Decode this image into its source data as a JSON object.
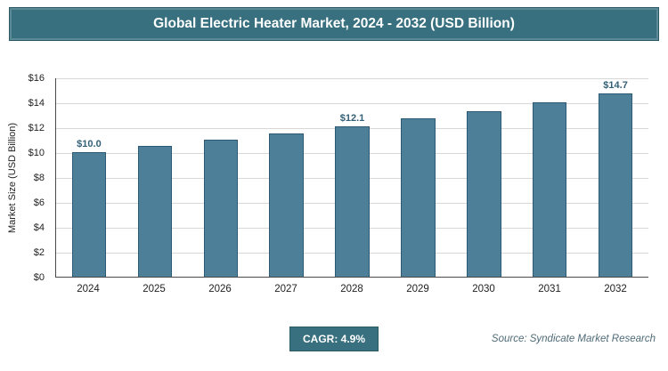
{
  "header": {
    "title": "Global Electric Heater Market, 2024 - 2032 (USD Billion)"
  },
  "chart_data": {
    "type": "bar",
    "title": "Global Electric Heater Market, 2024 - 2032 (USD Billion)",
    "categories": [
      "2024",
      "2025",
      "2026",
      "2027",
      "2028",
      "2029",
      "2030",
      "2031",
      "2032"
    ],
    "values": [
      10.0,
      10.5,
      11.0,
      11.5,
      12.1,
      12.7,
      13.3,
      14.0,
      14.7
    ],
    "bar_labels": [
      "$10.0",
      "",
      "",
      "",
      "$12.1",
      "",
      "",
      "",
      "$14.7"
    ],
    "xlabel": "",
    "ylabel": "Market Size (USD Billion)",
    "ylim": [
      0,
      16
    ],
    "ytick_step": 2,
    "ytick_prefix": "$",
    "grid": true,
    "legend": "none",
    "bar_color": "#4d7f98",
    "bar_border_color": "#2c5a74",
    "label_color": "#336077"
  },
  "footer": {
    "cagr_label": "CAGR: 4.9%",
    "source": "Source: Syndicate Market Research"
  },
  "colors": {
    "accent": "#38707f"
  }
}
